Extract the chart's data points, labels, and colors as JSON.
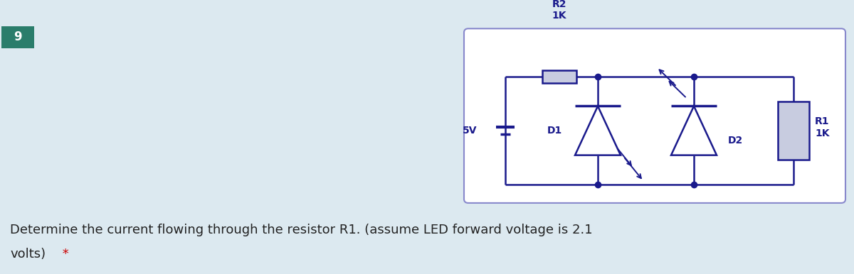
{
  "bg_color": "#dce9f0",
  "circuit_border_color": "#8888cc",
  "circuit_line_color": "#1a1a8c",
  "number_box_color": "#2a7d6b",
  "number_text": "9",
  "question_line1": "Determine the current flowing through the resistor R1. (assume LED forward voltage is 2.1",
  "question_line2": "volts)",
  "asterisk_text": " *",
  "question_color": "#222222",
  "asterisk_color": "#cc0000",
  "r2_label": "R2\n1K",
  "r1_label": "R1\n1K",
  "d1_label": "D1",
  "d2_label": "D2",
  "v_label": "5V",
  "resistor_fill": "#c8cce0"
}
